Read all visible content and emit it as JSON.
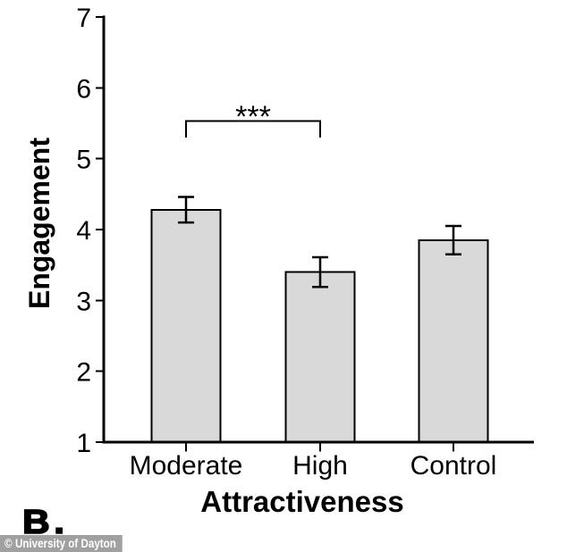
{
  "chart_data": {
    "type": "bar",
    "title": "",
    "xlabel": "Attractiveness",
    "ylabel": "Engagement",
    "categories": [
      "Moderate",
      "High",
      "Control"
    ],
    "values": [
      4.28,
      3.4,
      3.85
    ],
    "errors": [
      0.18,
      0.21,
      0.2
    ],
    "ylim": [
      1,
      7
    ],
    "yticks": [
      1,
      2,
      3,
      4,
      5,
      6,
      7
    ],
    "bar_fill": "#d9d9d9",
    "bar_stroke": "#000000",
    "axis_color": "#000000",
    "grid": false,
    "legend": null,
    "significance": {
      "label": "***",
      "from": "Moderate",
      "to": "High"
    }
  },
  "panel_label": "B.",
  "watermark": {
    "text": "© University of Dayton",
    "bg": "#a0a0a0",
    "color": "#ffffff"
  }
}
